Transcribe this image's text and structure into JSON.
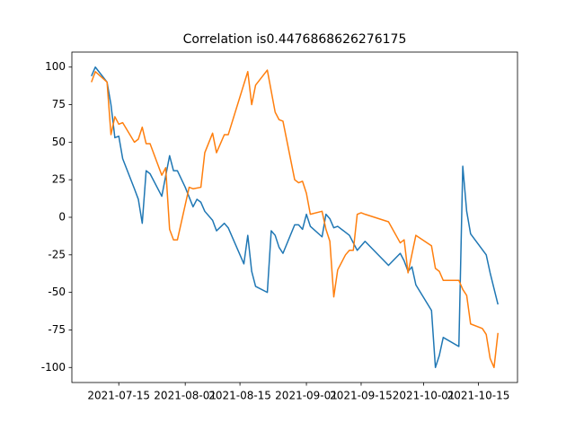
{
  "chart_data": {
    "type": "line",
    "title": "Correlation is0.4476868626276175",
    "xlim": [
      "2021-07-03",
      "2021-10-25"
    ],
    "xticks": [
      "2021-07-15",
      "2021-08-01",
      "2021-08-15",
      "2021-09-01",
      "2021-09-15",
      "2021-10-01",
      "2021-10-15"
    ],
    "ylim": [
      -110,
      110
    ],
    "yticks": [
      -100,
      -75,
      -50,
      -25,
      0,
      25,
      50,
      75,
      100
    ],
    "series": [
      {
        "color": "#1f77b4",
        "x": [
          "2021-07-08",
          "2021-07-09",
          "2021-07-12",
          "2021-07-13",
          "2021-07-14",
          "2021-07-15",
          "2021-07-16",
          "2021-07-19",
          "2021-07-20",
          "2021-07-21",
          "2021-07-22",
          "2021-07-23",
          "2021-07-26",
          "2021-07-28",
          "2021-07-29",
          "2021-07-30",
          "2021-08-01",
          "2021-08-03",
          "2021-08-04",
          "2021-08-05",
          "2021-08-06",
          "2021-08-08",
          "2021-08-09",
          "2021-08-11",
          "2021-08-12",
          "2021-08-16",
          "2021-08-17",
          "2021-08-18",
          "2021-08-19",
          "2021-08-22",
          "2021-08-23",
          "2021-08-24",
          "2021-08-25",
          "2021-08-26",
          "2021-08-29",
          "2021-08-30",
          "2021-08-31",
          "2021-09-01",
          "2021-09-02",
          "2021-09-05",
          "2021-09-06",
          "2021-09-07",
          "2021-09-08",
          "2021-09-09",
          "2021-09-12",
          "2021-09-14",
          "2021-09-16",
          "2021-09-22",
          "2021-09-25",
          "2021-09-26",
          "2021-09-27",
          "2021-09-28",
          "2021-09-29",
          "2021-10-03",
          "2021-10-04",
          "2021-10-05",
          "2021-10-06",
          "2021-10-10",
          "2021-10-11",
          "2021-10-12",
          "2021-10-13",
          "2021-10-17",
          "2021-10-18",
          "2021-10-20"
        ],
        "values": [
          94,
          100,
          90,
          75,
          53,
          54,
          39,
          19,
          12,
          -4,
          31,
          29,
          14,
          41,
          31,
          31,
          20,
          7,
          12,
          10,
          4,
          -2,
          -9,
          -4,
          -7,
          -31,
          -12,
          -36,
          -46,
          -50,
          -9,
          -12,
          -20,
          -24,
          -5,
          -5,
          -8,
          2,
          -6,
          -13,
          2,
          -1,
          -7,
          -6,
          -12,
          -22,
          -16,
          -32,
          -24,
          -29,
          -36,
          -33,
          -45,
          -62,
          -100,
          -92,
          -80,
          -86,
          34,
          4,
          -11,
          -25,
          -37,
          -58
        ]
      },
      {
        "color": "#ff7f0e",
        "x": [
          "2021-07-08",
          "2021-07-09",
          "2021-07-12",
          "2021-07-13",
          "2021-07-14",
          "2021-07-15",
          "2021-07-16",
          "2021-07-19",
          "2021-07-20",
          "2021-07-21",
          "2021-07-22",
          "2021-07-23",
          "2021-07-26",
          "2021-07-27",
          "2021-07-28",
          "2021-07-29",
          "2021-07-30",
          "2021-08-02",
          "2021-08-03",
          "2021-08-05",
          "2021-08-06",
          "2021-08-08",
          "2021-08-09",
          "2021-08-10",
          "2021-08-11",
          "2021-08-12",
          "2021-08-17",
          "2021-08-18",
          "2021-08-19",
          "2021-08-22",
          "2021-08-24",
          "2021-08-25",
          "2021-08-26",
          "2021-08-29",
          "2021-08-30",
          "2021-08-31",
          "2021-09-01",
          "2021-09-02",
          "2021-09-05",
          "2021-09-06",
          "2021-09-07",
          "2021-09-08",
          "2021-09-09",
          "2021-09-11",
          "2021-09-12",
          "2021-09-13",
          "2021-09-14",
          "2021-09-15",
          "2021-09-16",
          "2021-09-22",
          "2021-09-25",
          "2021-09-26",
          "2021-09-27",
          "2021-09-29",
          "2021-10-03",
          "2021-10-04",
          "2021-10-05",
          "2021-10-06",
          "2021-10-10",
          "2021-10-11",
          "2021-10-12",
          "2021-10-13",
          "2021-10-16",
          "2021-10-17",
          "2021-10-18",
          "2021-10-19",
          "2021-10-20"
        ],
        "values": [
          90,
          97,
          90,
          55,
          67,
          62,
          63,
          50,
          52,
          60,
          49,
          49,
          28,
          33,
          -8,
          -15,
          -15,
          20,
          19,
          20,
          43,
          56,
          43,
          49,
          55,
          55,
          97,
          75,
          88,
          98,
          70,
          65,
          64,
          25,
          23,
          24,
          16,
          2,
          4,
          -8,
          -16,
          -53,
          -35,
          -25,
          -22,
          -22,
          2,
          3,
          2,
          -3,
          -17,
          -15,
          -37,
          -12,
          -19,
          -34,
          -36,
          -42,
          -42,
          -48,
          -52,
          -71,
          -74,
          -78,
          -94,
          -100,
          -77
        ]
      }
    ]
  }
}
